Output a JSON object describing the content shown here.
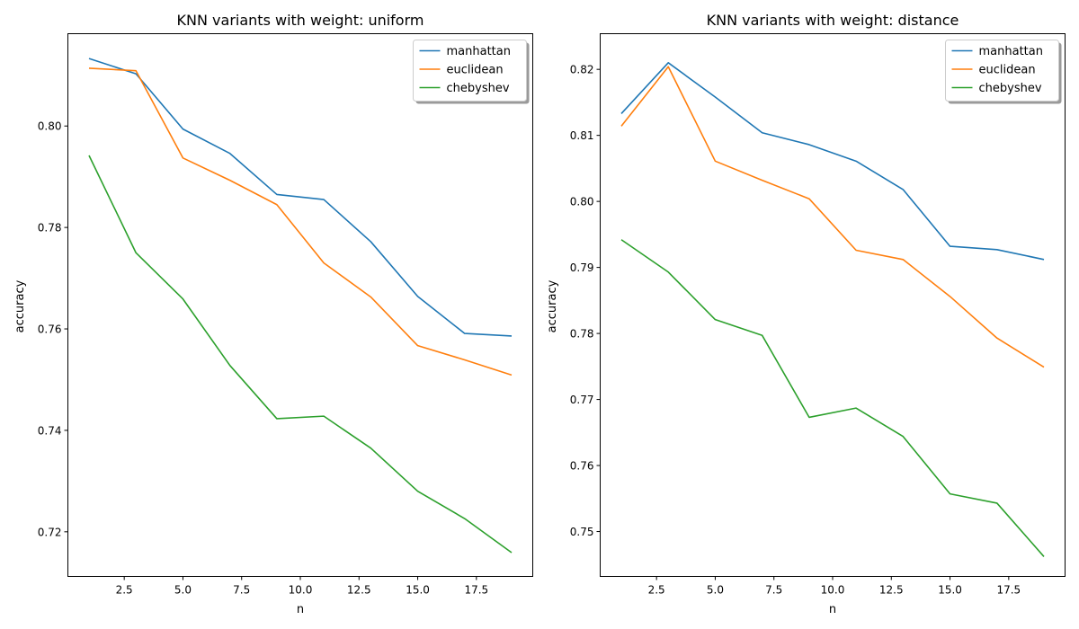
{
  "chart_data": [
    {
      "type": "line",
      "title": "KNN variants with weight: uniform",
      "xlabel": "n",
      "ylabel": "accuracy",
      "xlim": [
        0.1,
        19.9
      ],
      "ylim": [
        0.7112,
        0.8182
      ],
      "xticks": [
        2.5,
        5.0,
        7.5,
        10.0,
        12.5,
        15.0,
        17.5
      ],
      "yticks": [
        0.72,
        0.74,
        0.76,
        0.78,
        0.8
      ],
      "x": [
        1,
        3,
        5,
        7,
        9,
        11,
        13,
        15,
        17,
        19
      ],
      "legend": "top-right",
      "series": [
        {
          "name": "manhattan",
          "color": "#1f77b4",
          "values": [
            0.8133,
            0.8103,
            0.7994,
            0.7946,
            0.7865,
            0.7855,
            0.7772,
            0.7664,
            0.7591,
            0.7586
          ]
        },
        {
          "name": "euclidean",
          "color": "#ff7f0e",
          "values": [
            0.8114,
            0.8109,
            0.7937,
            0.7893,
            0.7845,
            0.773,
            0.7663,
            0.7567,
            0.7539,
            0.7509
          ]
        },
        {
          "name": "chebyshev",
          "color": "#2ca02c",
          "values": [
            0.7942,
            0.775,
            0.7659,
            0.7528,
            0.7423,
            0.7428,
            0.7365,
            0.728,
            0.7226,
            0.7159
          ]
        }
      ]
    },
    {
      "type": "line",
      "title": "KNN variants with weight: distance",
      "xlabel": "n",
      "ylabel": "accuracy",
      "xlim": [
        0.1,
        19.9
      ],
      "ylim": [
        0.7432,
        0.8254
      ],
      "xticks": [
        2.5,
        5.0,
        7.5,
        10.0,
        12.5,
        15.0,
        17.5
      ],
      "yticks": [
        0.75,
        0.76,
        0.77,
        0.78,
        0.79,
        0.8,
        0.81,
        0.82
      ],
      "x": [
        1,
        3,
        5,
        7,
        9,
        11,
        13,
        15,
        17,
        19
      ],
      "legend": "top-right",
      "series": [
        {
          "name": "manhattan",
          "color": "#1f77b4",
          "values": [
            0.8133,
            0.821,
            0.8158,
            0.8104,
            0.8086,
            0.8061,
            0.8018,
            0.7932,
            0.7927,
            0.7912
          ]
        },
        {
          "name": "euclidean",
          "color": "#ff7f0e",
          "values": [
            0.8114,
            0.8204,
            0.8061,
            0.8032,
            0.8004,
            0.7926,
            0.7912,
            0.7856,
            0.7793,
            0.7749
          ]
        },
        {
          "name": "chebyshev",
          "color": "#2ca02c",
          "values": [
            0.7942,
            0.7893,
            0.7821,
            0.7797,
            0.7673,
            0.7687,
            0.7644,
            0.7557,
            0.7543,
            0.7462
          ]
        }
      ]
    }
  ]
}
